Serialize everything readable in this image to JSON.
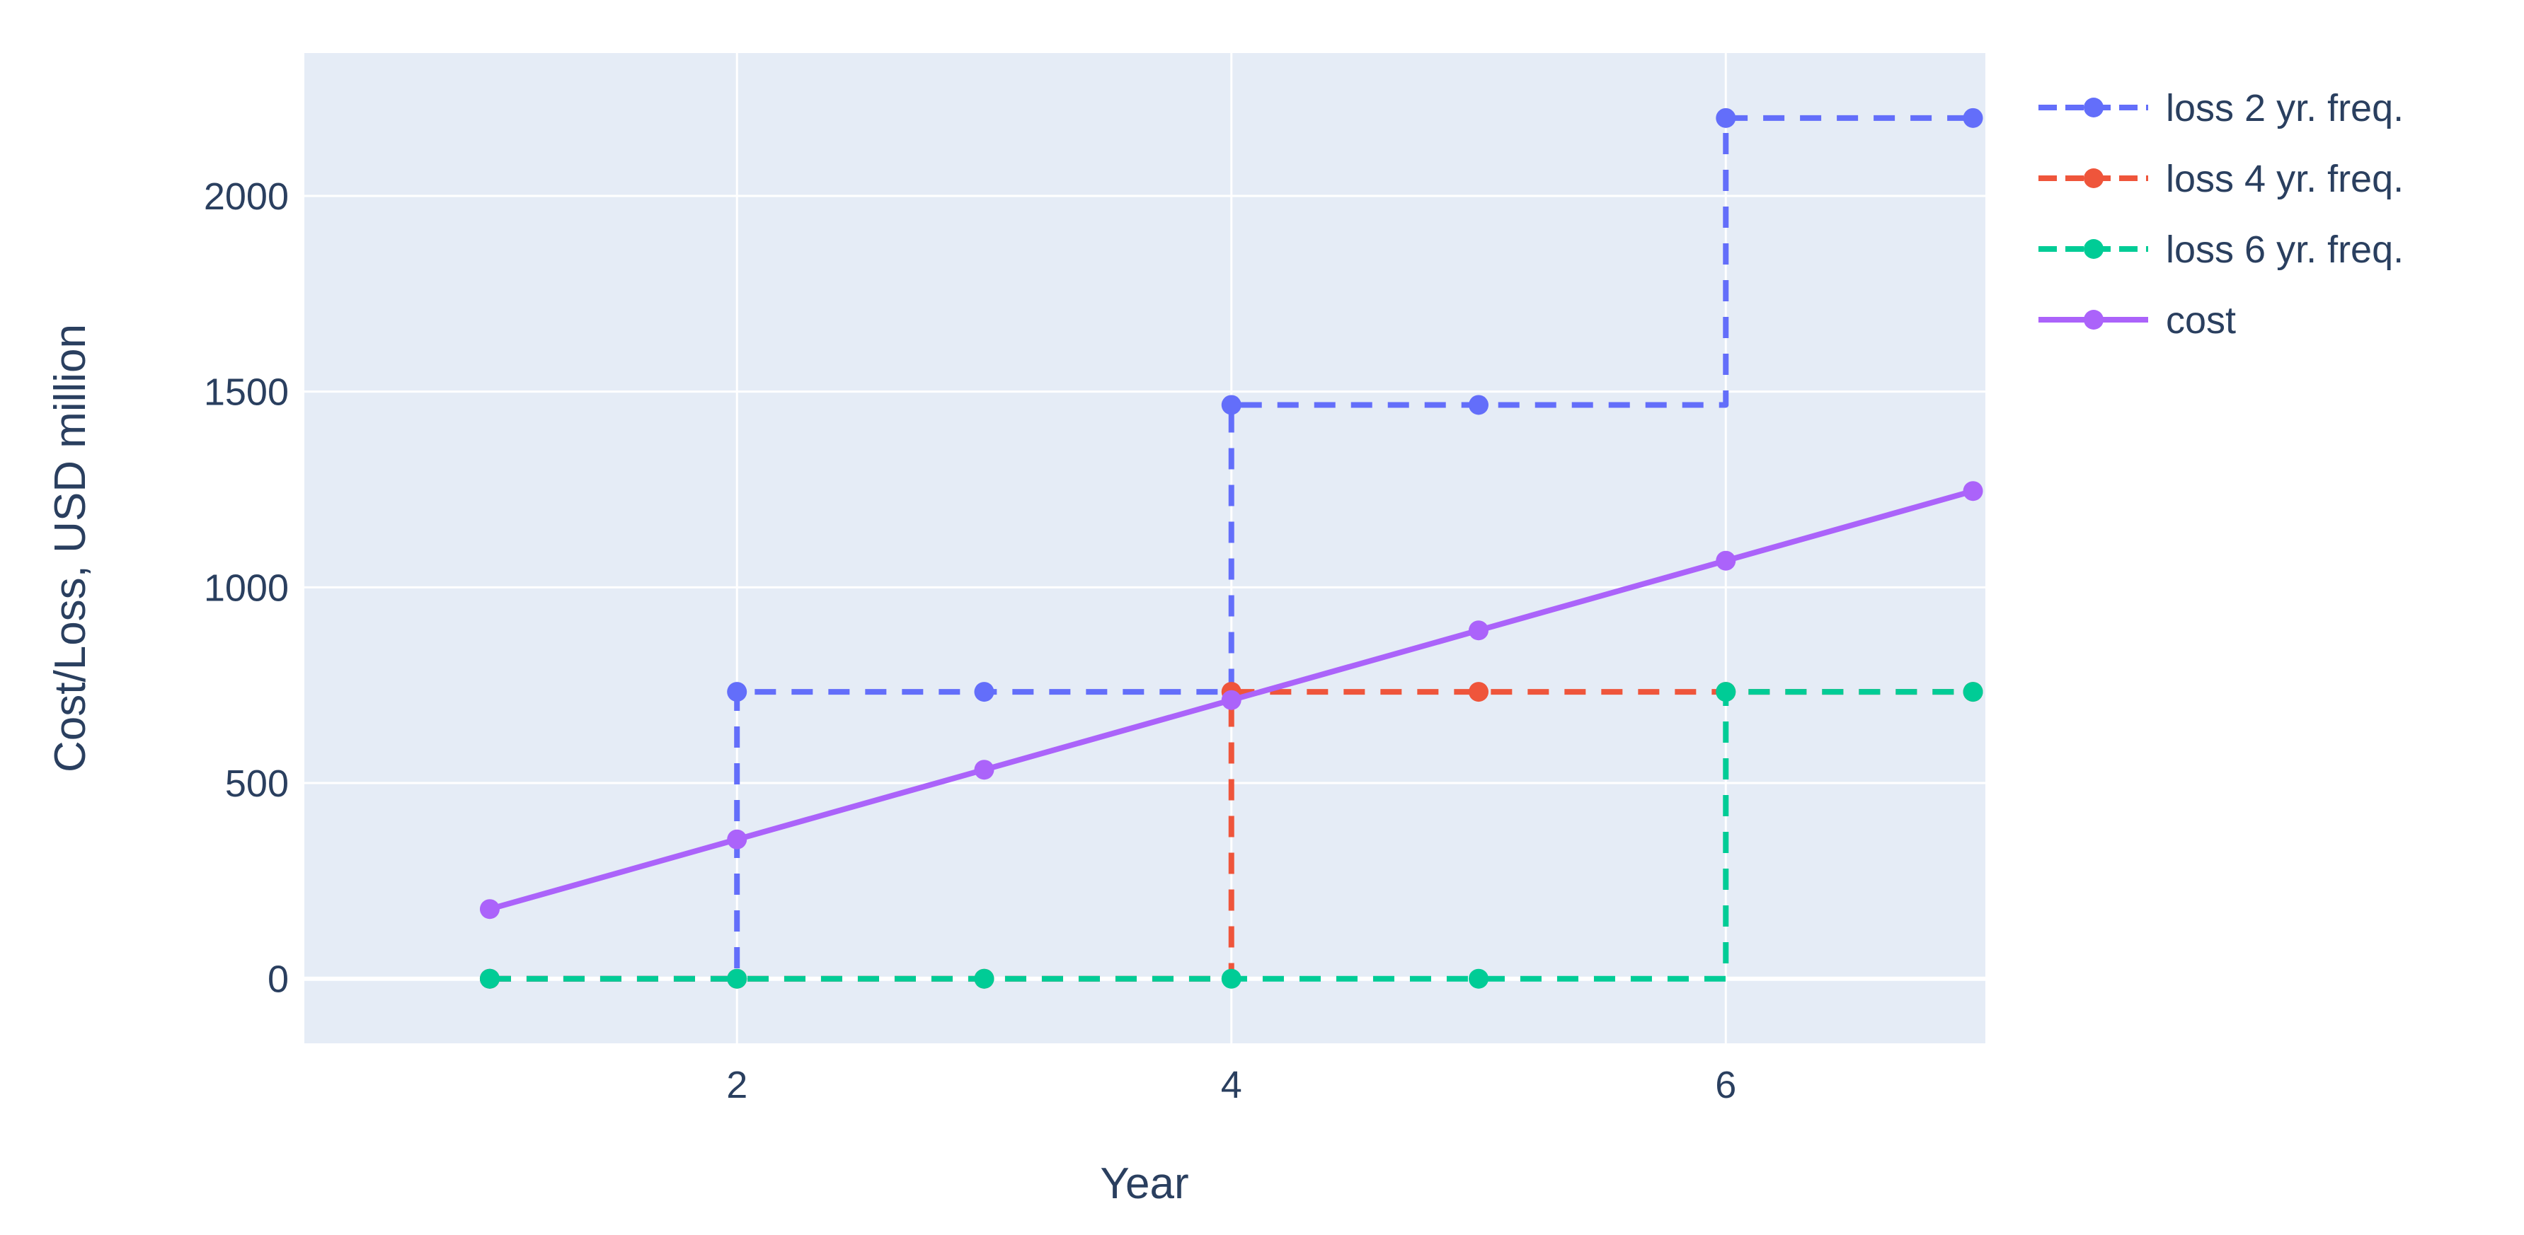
{
  "chart_data": {
    "type": "line",
    "xlabel": "Year",
    "ylabel": "Cost/Loss, USD million",
    "x": [
      1,
      2,
      3,
      4,
      5,
      6,
      7
    ],
    "xlim": [
      0.25,
      7.05
    ],
    "ylim": [
      -165,
      2365
    ],
    "xticks": [
      2,
      4,
      6
    ],
    "xtick_labels": [
      "2",
      "4",
      "6"
    ],
    "yticks": [
      0,
      500,
      1000,
      1500,
      2000
    ],
    "ytick_labels": [
      "0",
      "500",
      "1000",
      "1500",
      "2000"
    ],
    "grid": true,
    "legend_position": "top-right outside plot",
    "series": [
      {
        "name": "loss 2 yr. freq.",
        "color": "#636efa",
        "dash": "dashed",
        "line_shape": "step",
        "values": [
          0,
          733,
          733,
          1466,
          1466,
          2199,
          2199
        ]
      },
      {
        "name": "loss 4 yr. freq.",
        "color": "#ef553b",
        "dash": "dashed",
        "line_shape": "step",
        "values": [
          0,
          0,
          0,
          733,
          733,
          733,
          733
        ]
      },
      {
        "name": "loss 6 yr. freq.",
        "color": "#00cc96",
        "dash": "dashed",
        "line_shape": "step",
        "values": [
          0,
          0,
          0,
          0,
          0,
          733,
          733
        ]
      },
      {
        "name": "cost",
        "color": "#ab63fa",
        "dash": "solid",
        "line_shape": "linear",
        "values": [
          178,
          356,
          534,
          712,
          890,
          1068,
          1246
        ]
      }
    ]
  },
  "colors": {
    "plot_background": "#e5ecf6",
    "grid": "#ffffff",
    "text": "#2a3f5f"
  }
}
